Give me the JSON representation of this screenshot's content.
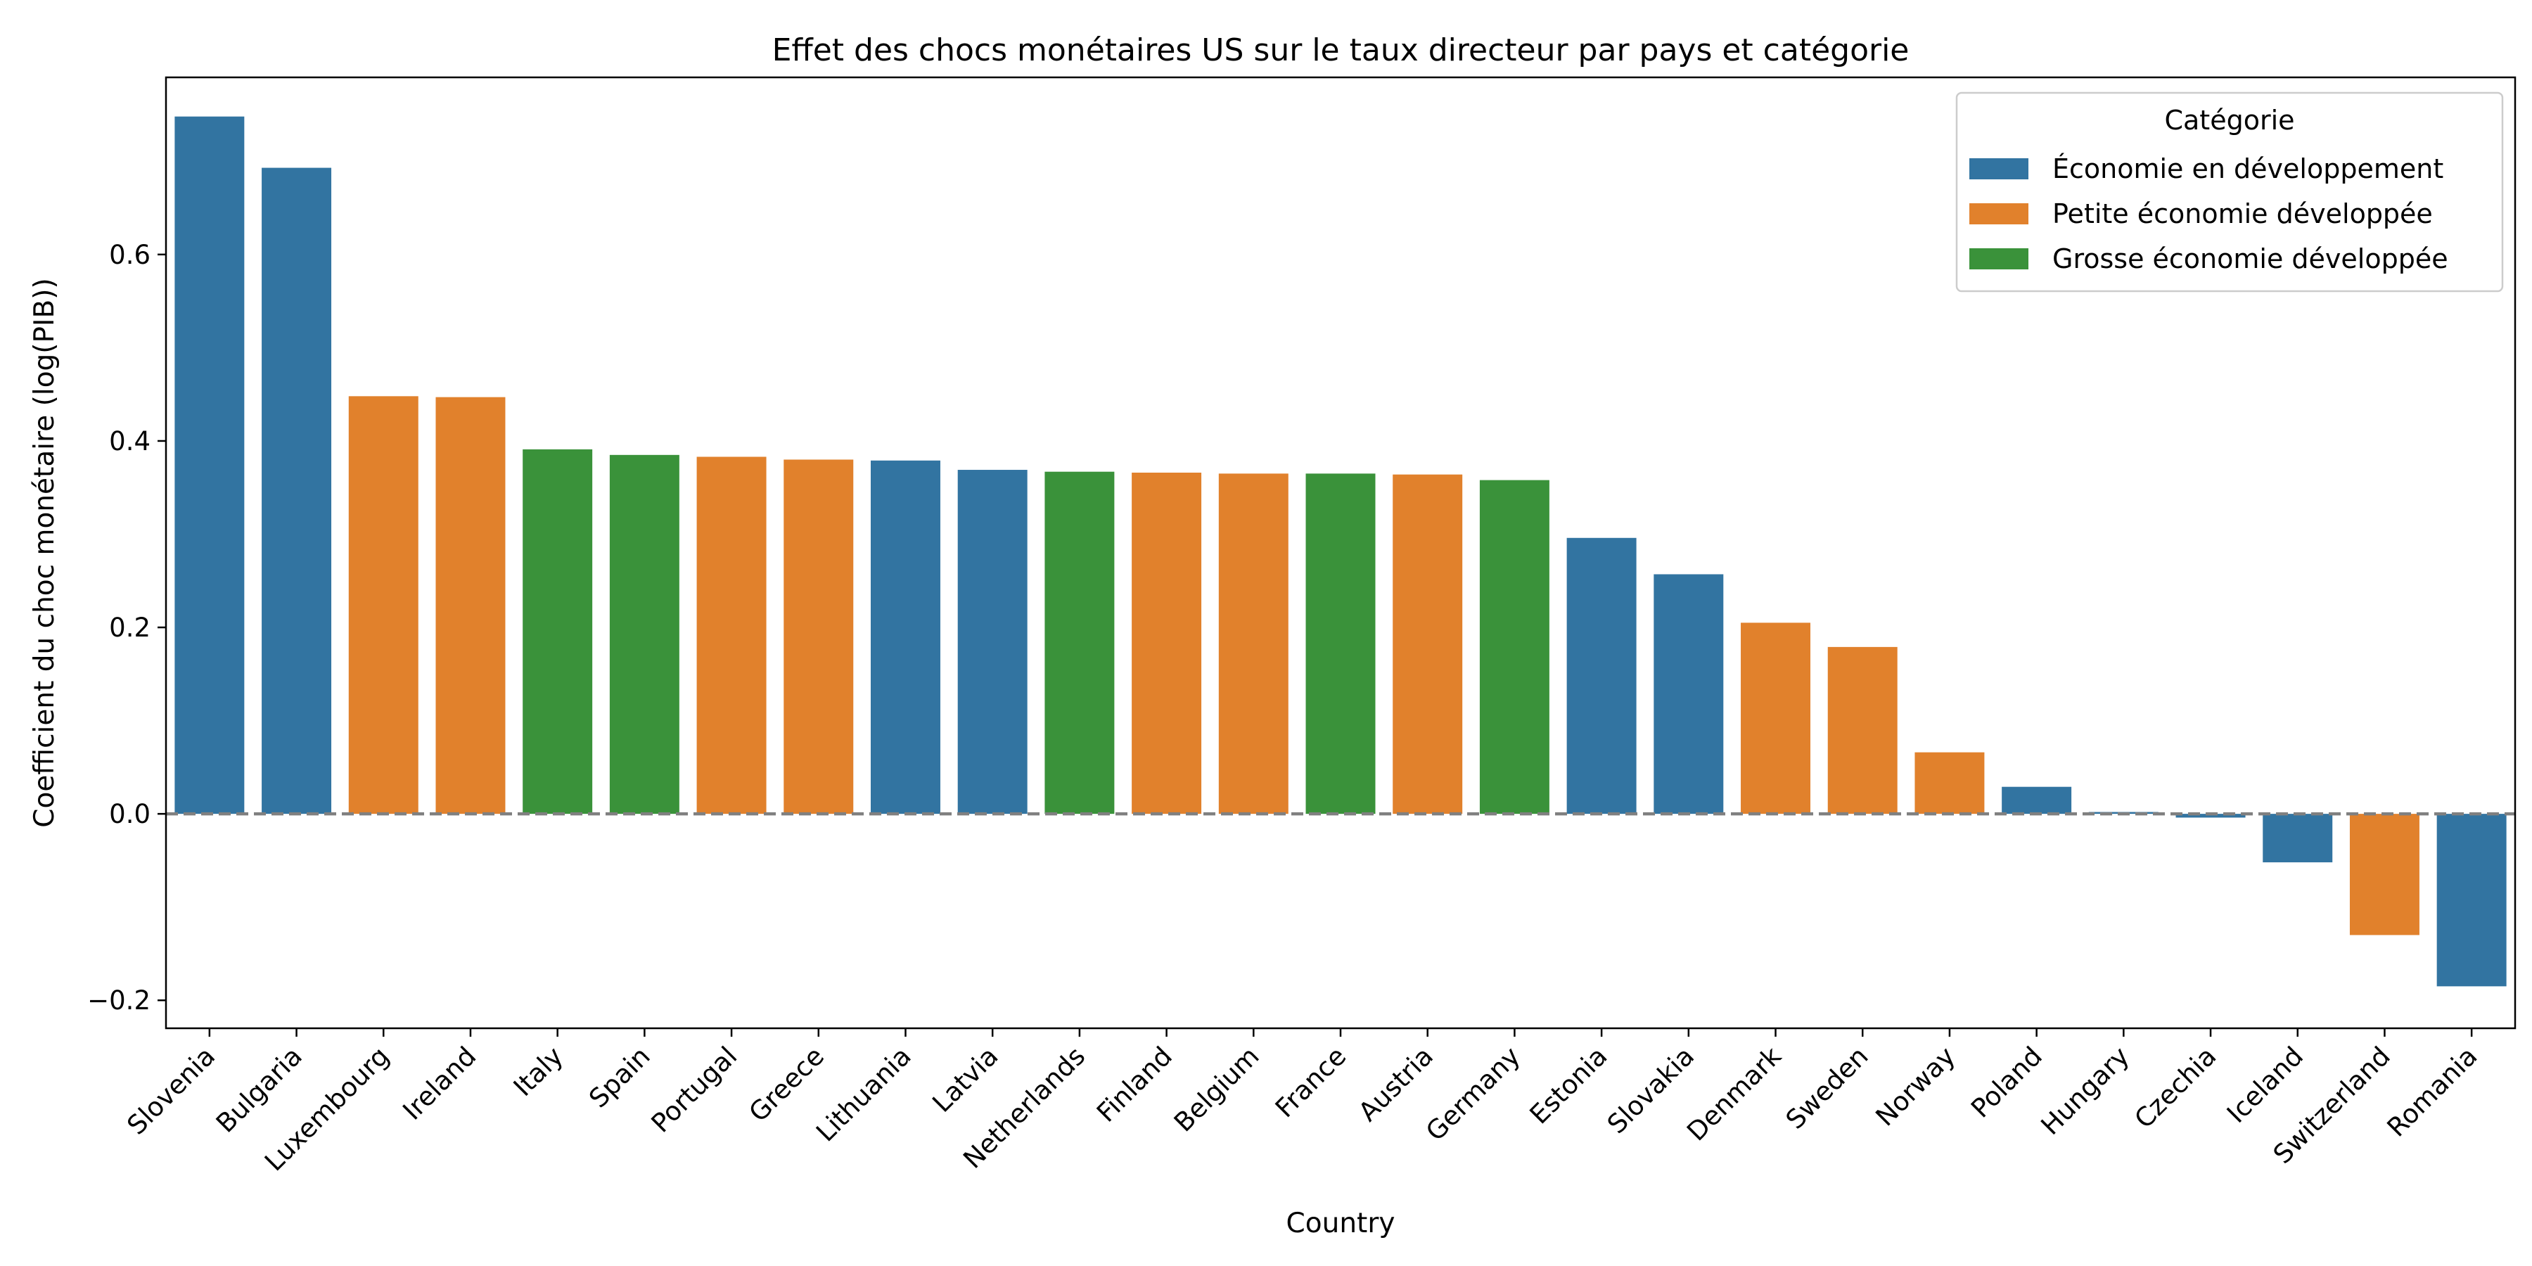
{
  "chart_data": {
    "type": "bar",
    "title": "Effet des chocs monétaires US sur le taux directeur par pays et catégorie",
    "xlabel": "Country",
    "ylabel": "Coefficient du choc monétaire (log(PIB))",
    "ylim": [
      -0.23,
      0.79
    ],
    "yticks": [
      -0.2,
      0.0,
      0.2,
      0.4,
      0.6
    ],
    "ytick_labels": [
      "−0.2",
      "0.0",
      "0.2",
      "0.4",
      "0.6"
    ],
    "grid": false,
    "zero_line": true,
    "legend": {
      "title": "Catégorie",
      "placement": "top-right",
      "entries": [
        {
          "label": "Économie en développement",
          "color": "#3274a1"
        },
        {
          "label": "Petite économie développée",
          "color": "#e1812c"
        },
        {
          "label": "Grosse économie développée",
          "color": "#3a923a"
        }
      ]
    },
    "categories": [
      "Slovenia",
      "Bulgaria",
      "Luxembourg",
      "Ireland",
      "Italy",
      "Spain",
      "Portugal",
      "Greece",
      "Lithuania",
      "Latvia",
      "Netherlands",
      "Finland",
      "Belgium",
      "France",
      "Austria",
      "Germany",
      "Estonia",
      "Slovakia",
      "Denmark",
      "Sweden",
      "Norway",
      "Poland",
      "Hungary",
      "Czechia",
      "Iceland",
      "Switzerland",
      "Romania"
    ],
    "values": [
      0.748,
      0.693,
      0.448,
      0.447,
      0.391,
      0.385,
      0.383,
      0.38,
      0.379,
      0.369,
      0.367,
      0.366,
      0.365,
      0.365,
      0.364,
      0.358,
      0.296,
      0.257,
      0.205,
      0.179,
      0.066,
      0.029,
      0.002,
      -0.004,
      -0.052,
      -0.13,
      -0.185
    ],
    "bar_category": [
      0,
      0,
      1,
      1,
      2,
      2,
      1,
      1,
      0,
      0,
      2,
      1,
      1,
      2,
      1,
      2,
      0,
      0,
      1,
      1,
      1,
      0,
      0,
      0,
      0,
      1,
      0
    ]
  }
}
